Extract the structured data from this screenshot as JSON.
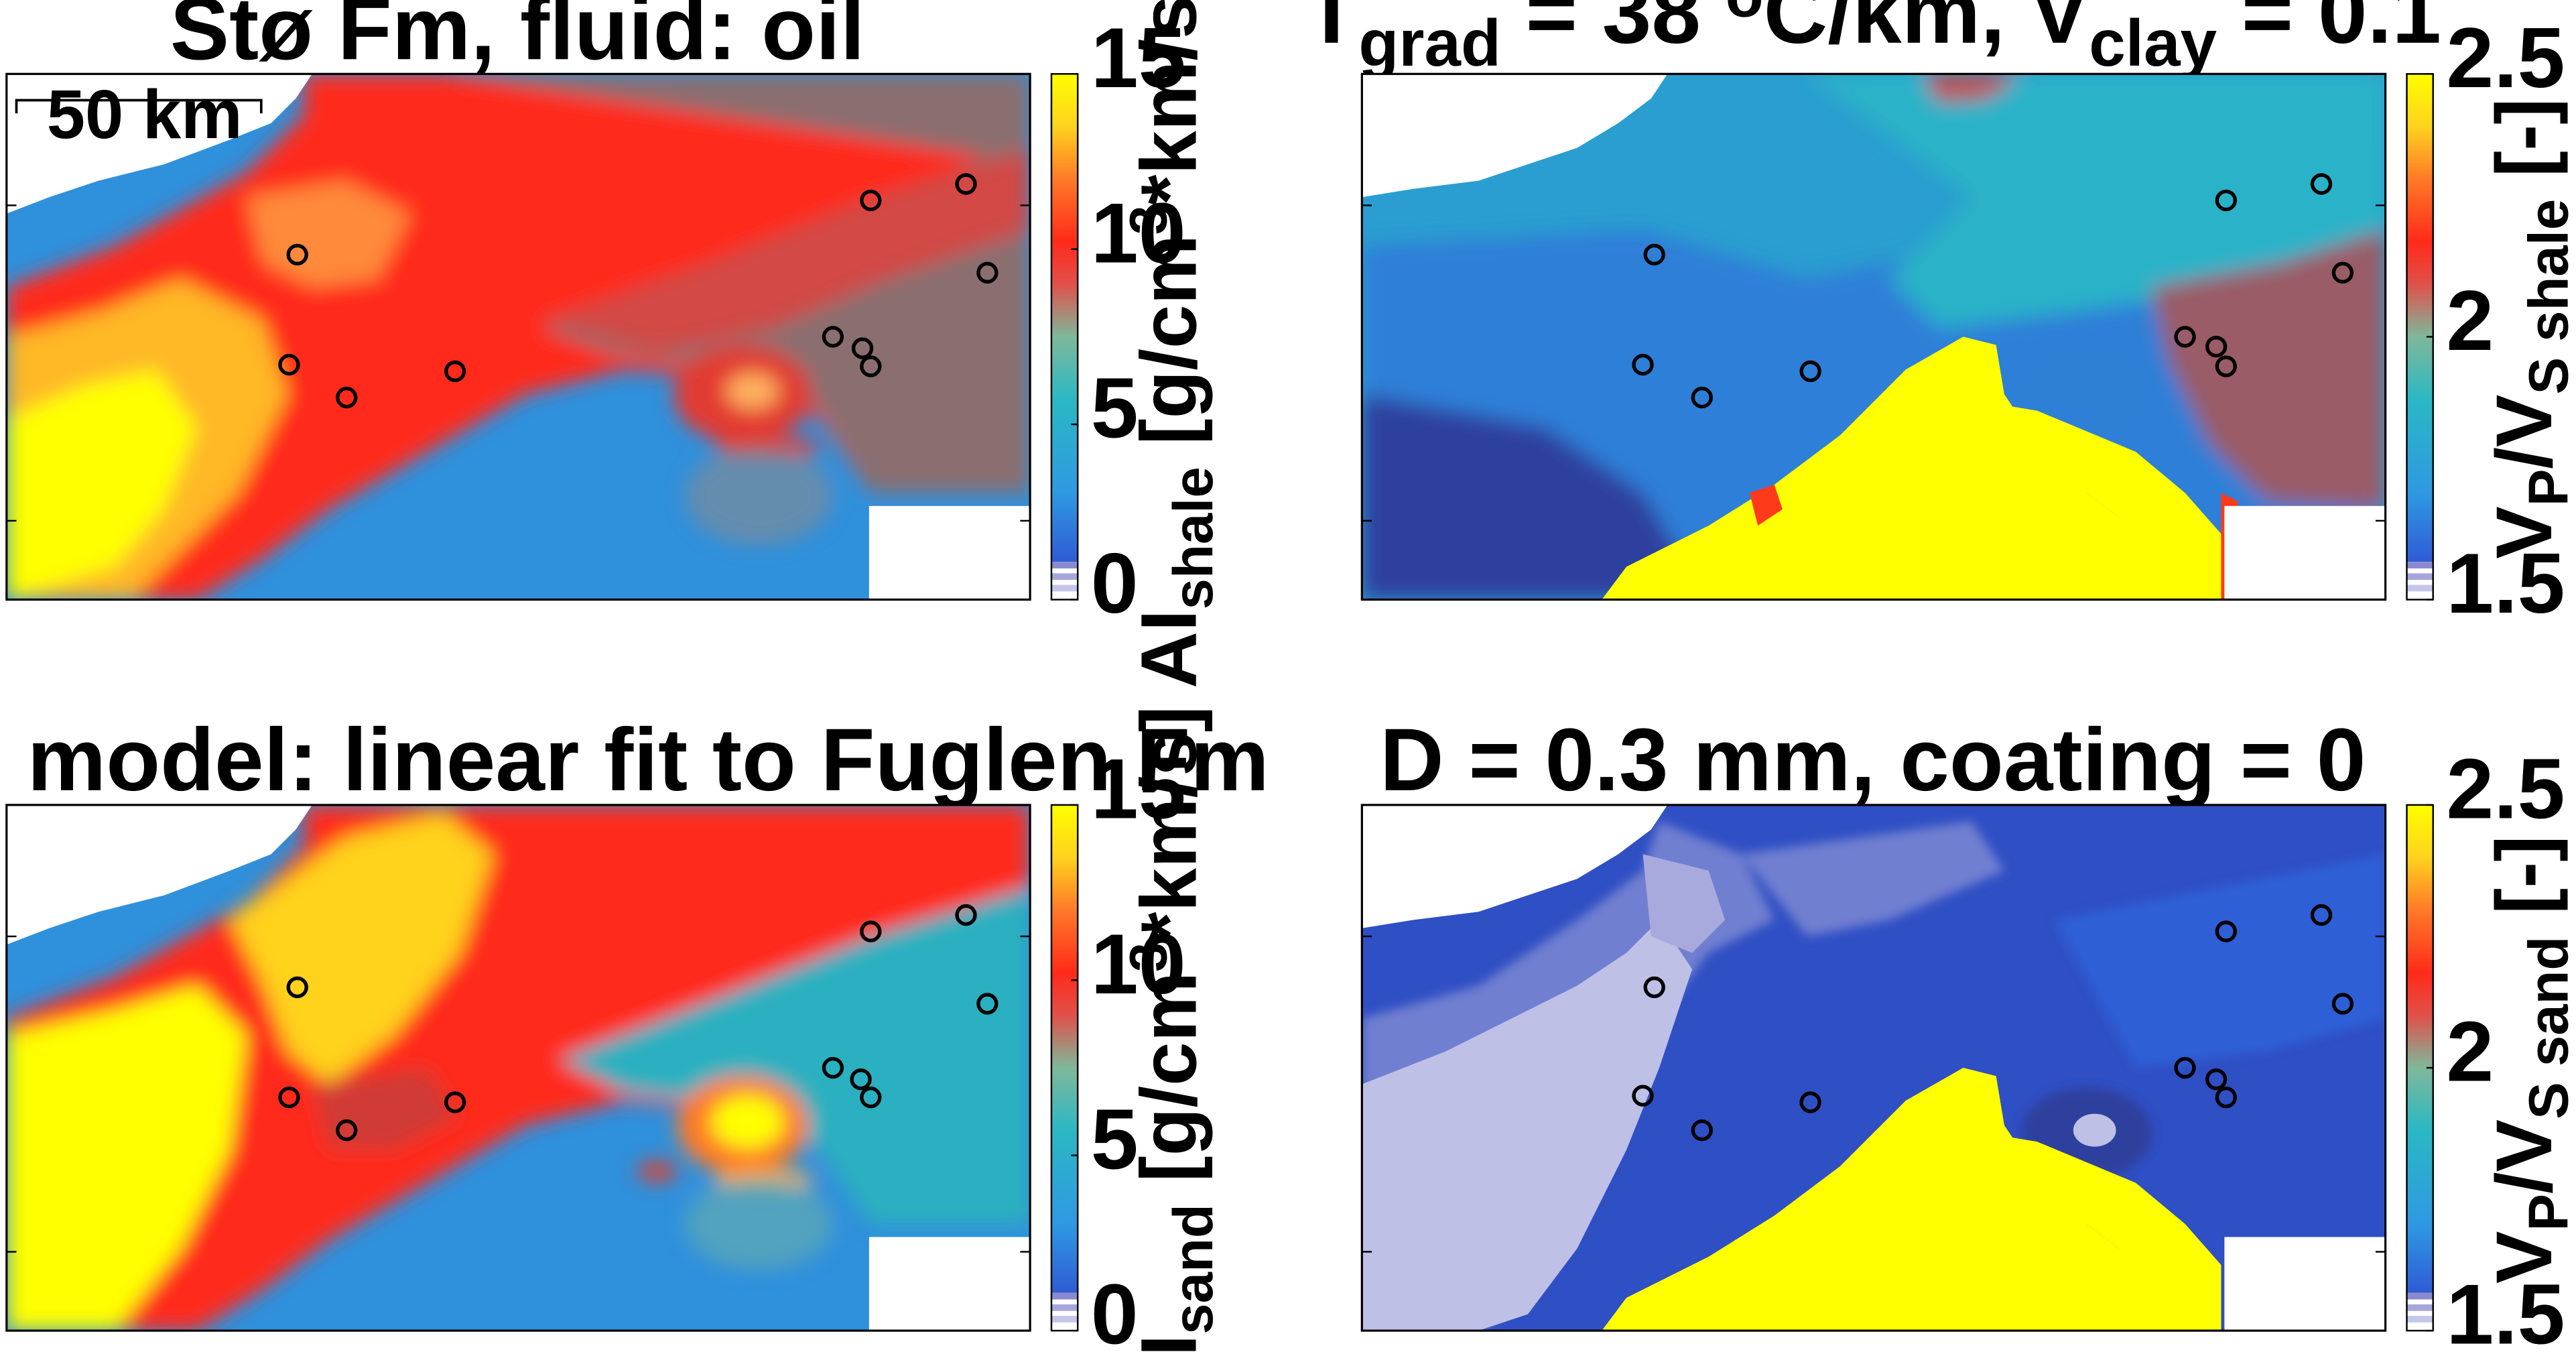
{
  "colors": {
    "fill": "#ffffff",
    "gray_overlay": "#7a7a7a",
    "well_marker": "#000000",
    "colormap": [
      "#cfd0ea",
      "#2e3a9a",
      "#2f5fd6",
      "#2f98e2",
      "#2ab8c4",
      "#7fb89a",
      "#e0504a",
      "#ff2a1a",
      "#ff7a28",
      "#ffd21e",
      "#ffff00"
    ]
  },
  "chart_data": [
    {
      "type": "heatmap",
      "panel": "top-left",
      "title": {
        "pre": "Stø Fm, fluid: oil",
        "sub1": "",
        "mid": "",
        "sup": "",
        "post": "",
        "sub2": "",
        "tail": ""
      },
      "colorbar": {
        "range": [
          0,
          15
        ],
        "ticks": [
          "0",
          "5",
          "10",
          "15"
        ],
        "label": {
          "main": "AI",
          "sub": "shale",
          "rest1": " [g/cm",
          "sup": "3",
          "rest2": "*km/s]"
        }
      },
      "scale_bar": {
        "label": "50 km"
      },
      "wells": [
        [
          181,
          155
        ],
        [
          176,
          222
        ],
        [
          211,
          242
        ],
        [
          277,
          226
        ],
        [
          530,
          122
        ],
        [
          588,
          112
        ],
        [
          601,
          166
        ],
        [
          507,
          205
        ],
        [
          525,
          212
        ],
        [
          530,
          223
        ]
      ]
    },
    {
      "type": "heatmap",
      "panel": "top-right",
      "title": {
        "pre": "T",
        "sub1": "grad",
        "mid": " = 38 ",
        "sup": "o",
        "post": "C/km, V",
        "sub2": "clay",
        "tail": " =  0.1"
      },
      "colorbar": {
        "range": [
          1.5,
          2.5
        ],
        "ticks": [
          "1.5",
          "2",
          "2.5"
        ],
        "label": {
          "main": "V",
          "sub": "P",
          "rest1": "/V",
          "sup": "",
          "sub2": "S shale",
          "rest2": " [-]"
        }
      },
      "wells": [
        [
          1007,
          155
        ],
        [
          1000,
          222
        ],
        [
          1036,
          242
        ],
        [
          1102,
          226
        ],
        [
          1355,
          122
        ],
        [
          1413,
          112
        ],
        [
          1426,
          166
        ],
        [
          1330,
          205
        ],
        [
          1349,
          211
        ],
        [
          1355,
          223
        ]
      ]
    },
    {
      "type": "heatmap",
      "panel": "bottom-left",
      "title": {
        "pre": "Shale model: linear fit to Fuglen Fm",
        "sub1": "",
        "mid": "",
        "sup": "",
        "post": "",
        "sub2": "",
        "tail": ""
      },
      "colorbar": {
        "range": [
          0,
          15
        ],
        "ticks": [
          "0",
          "5",
          "10",
          "15"
        ],
        "label": {
          "main": "AI",
          "sub": "sand",
          "rest1": " [g/cm",
          "sup": "3",
          "rest2": "*km/s]"
        }
      },
      "wells": [
        [
          181,
          601
        ],
        [
          176,
          668
        ],
        [
          211,
          688
        ],
        [
          277,
          671
        ],
        [
          530,
          567
        ],
        [
          588,
          557
        ],
        [
          601,
          611
        ],
        [
          507,
          650
        ],
        [
          524,
          657
        ],
        [
          530,
          668
        ]
      ]
    },
    {
      "type": "heatmap",
      "panel": "bottom-right",
      "title": {
        "pre": "D = 0.3 mm, coating = 0",
        "sub1": "",
        "mid": "",
        "sup": "",
        "post": "",
        "sub2": "",
        "tail": ""
      },
      "colorbar": {
        "range": [
          1.5,
          2.5
        ],
        "ticks": [
          "1.5",
          "2",
          "2.5"
        ],
        "label": {
          "main": "V",
          "sub": "P",
          "rest1": "/V",
          "sup": "",
          "sub2": "S sand",
          "rest2": " [-]"
        }
      },
      "wells": [
        [
          1007,
          601
        ],
        [
          1000,
          667
        ],
        [
          1036,
          688
        ],
        [
          1102,
          671
        ],
        [
          1355,
          567
        ],
        [
          1413,
          557
        ],
        [
          1426,
          611
        ],
        [
          1330,
          650
        ],
        [
          1349,
          657
        ],
        [
          1355,
          668
        ]
      ]
    }
  ]
}
